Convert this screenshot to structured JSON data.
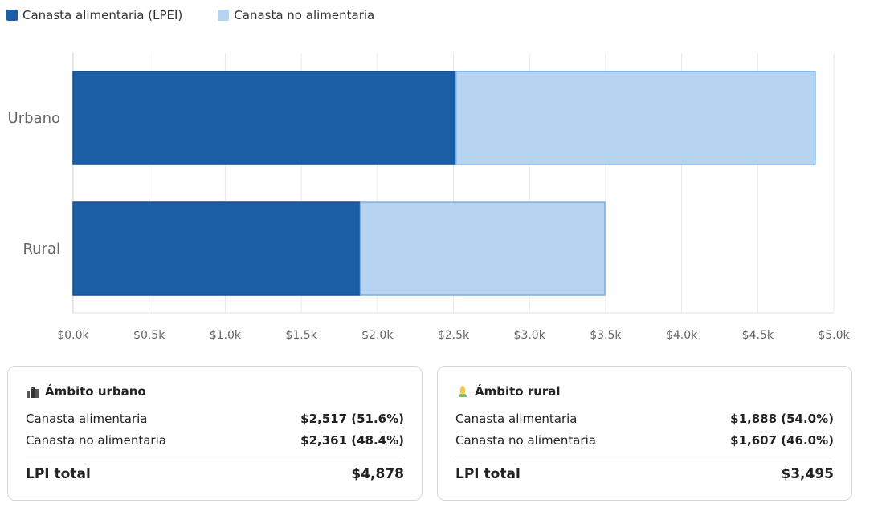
{
  "legend": [
    {
      "label": "Canasta alimentaria (LPEI)",
      "color": "#1b5ea6"
    },
    {
      "label": "Canasta no alimentaria",
      "color": "#b6d4f2"
    }
  ],
  "chart_data": {
    "type": "bar",
    "orientation": "horizontal",
    "stacked": true,
    "categories": [
      "Urbano",
      "Rural"
    ],
    "series": [
      {
        "name": "Canasta alimentaria (LPEI)",
        "values": [
          2517,
          1888
        ],
        "color": "#1b5ea6"
      },
      {
        "name": "Canasta no alimentaria",
        "values": [
          2361,
          1607
        ],
        "color": "#b6d4f2"
      }
    ],
    "xlim": [
      0,
      5000
    ],
    "xticks": [
      "$0.0k",
      "$0.5k",
      "$1.0k",
      "$1.5k",
      "$2.0k",
      "$2.5k",
      "$3.0k",
      "$3.5k",
      "$4.0k",
      "$4.5k",
      "$5.0k"
    ],
    "grid": true,
    "legend_position": "top-left"
  },
  "cards": {
    "urban": {
      "icon": "city-icon",
      "title": "Ámbito urbano",
      "row1_label": "Canasta alimentaria",
      "row1_value": "$2,517 (51.6%)",
      "row2_label": "Canasta no alimentaria",
      "row2_value": "$2,361 (48.4%)",
      "total_label": "LPI total",
      "total_value": "$4,878"
    },
    "rural": {
      "icon": "corn-icon",
      "title": "Ámbito rural",
      "row1_label": "Canasta alimentaria",
      "row1_value": "$1,888 (54.0%)",
      "row2_label": "Canasta no alimentaria",
      "row2_value": "$1,607 (46.0%)",
      "total_label": "LPI total",
      "total_value": "$3,495"
    }
  }
}
